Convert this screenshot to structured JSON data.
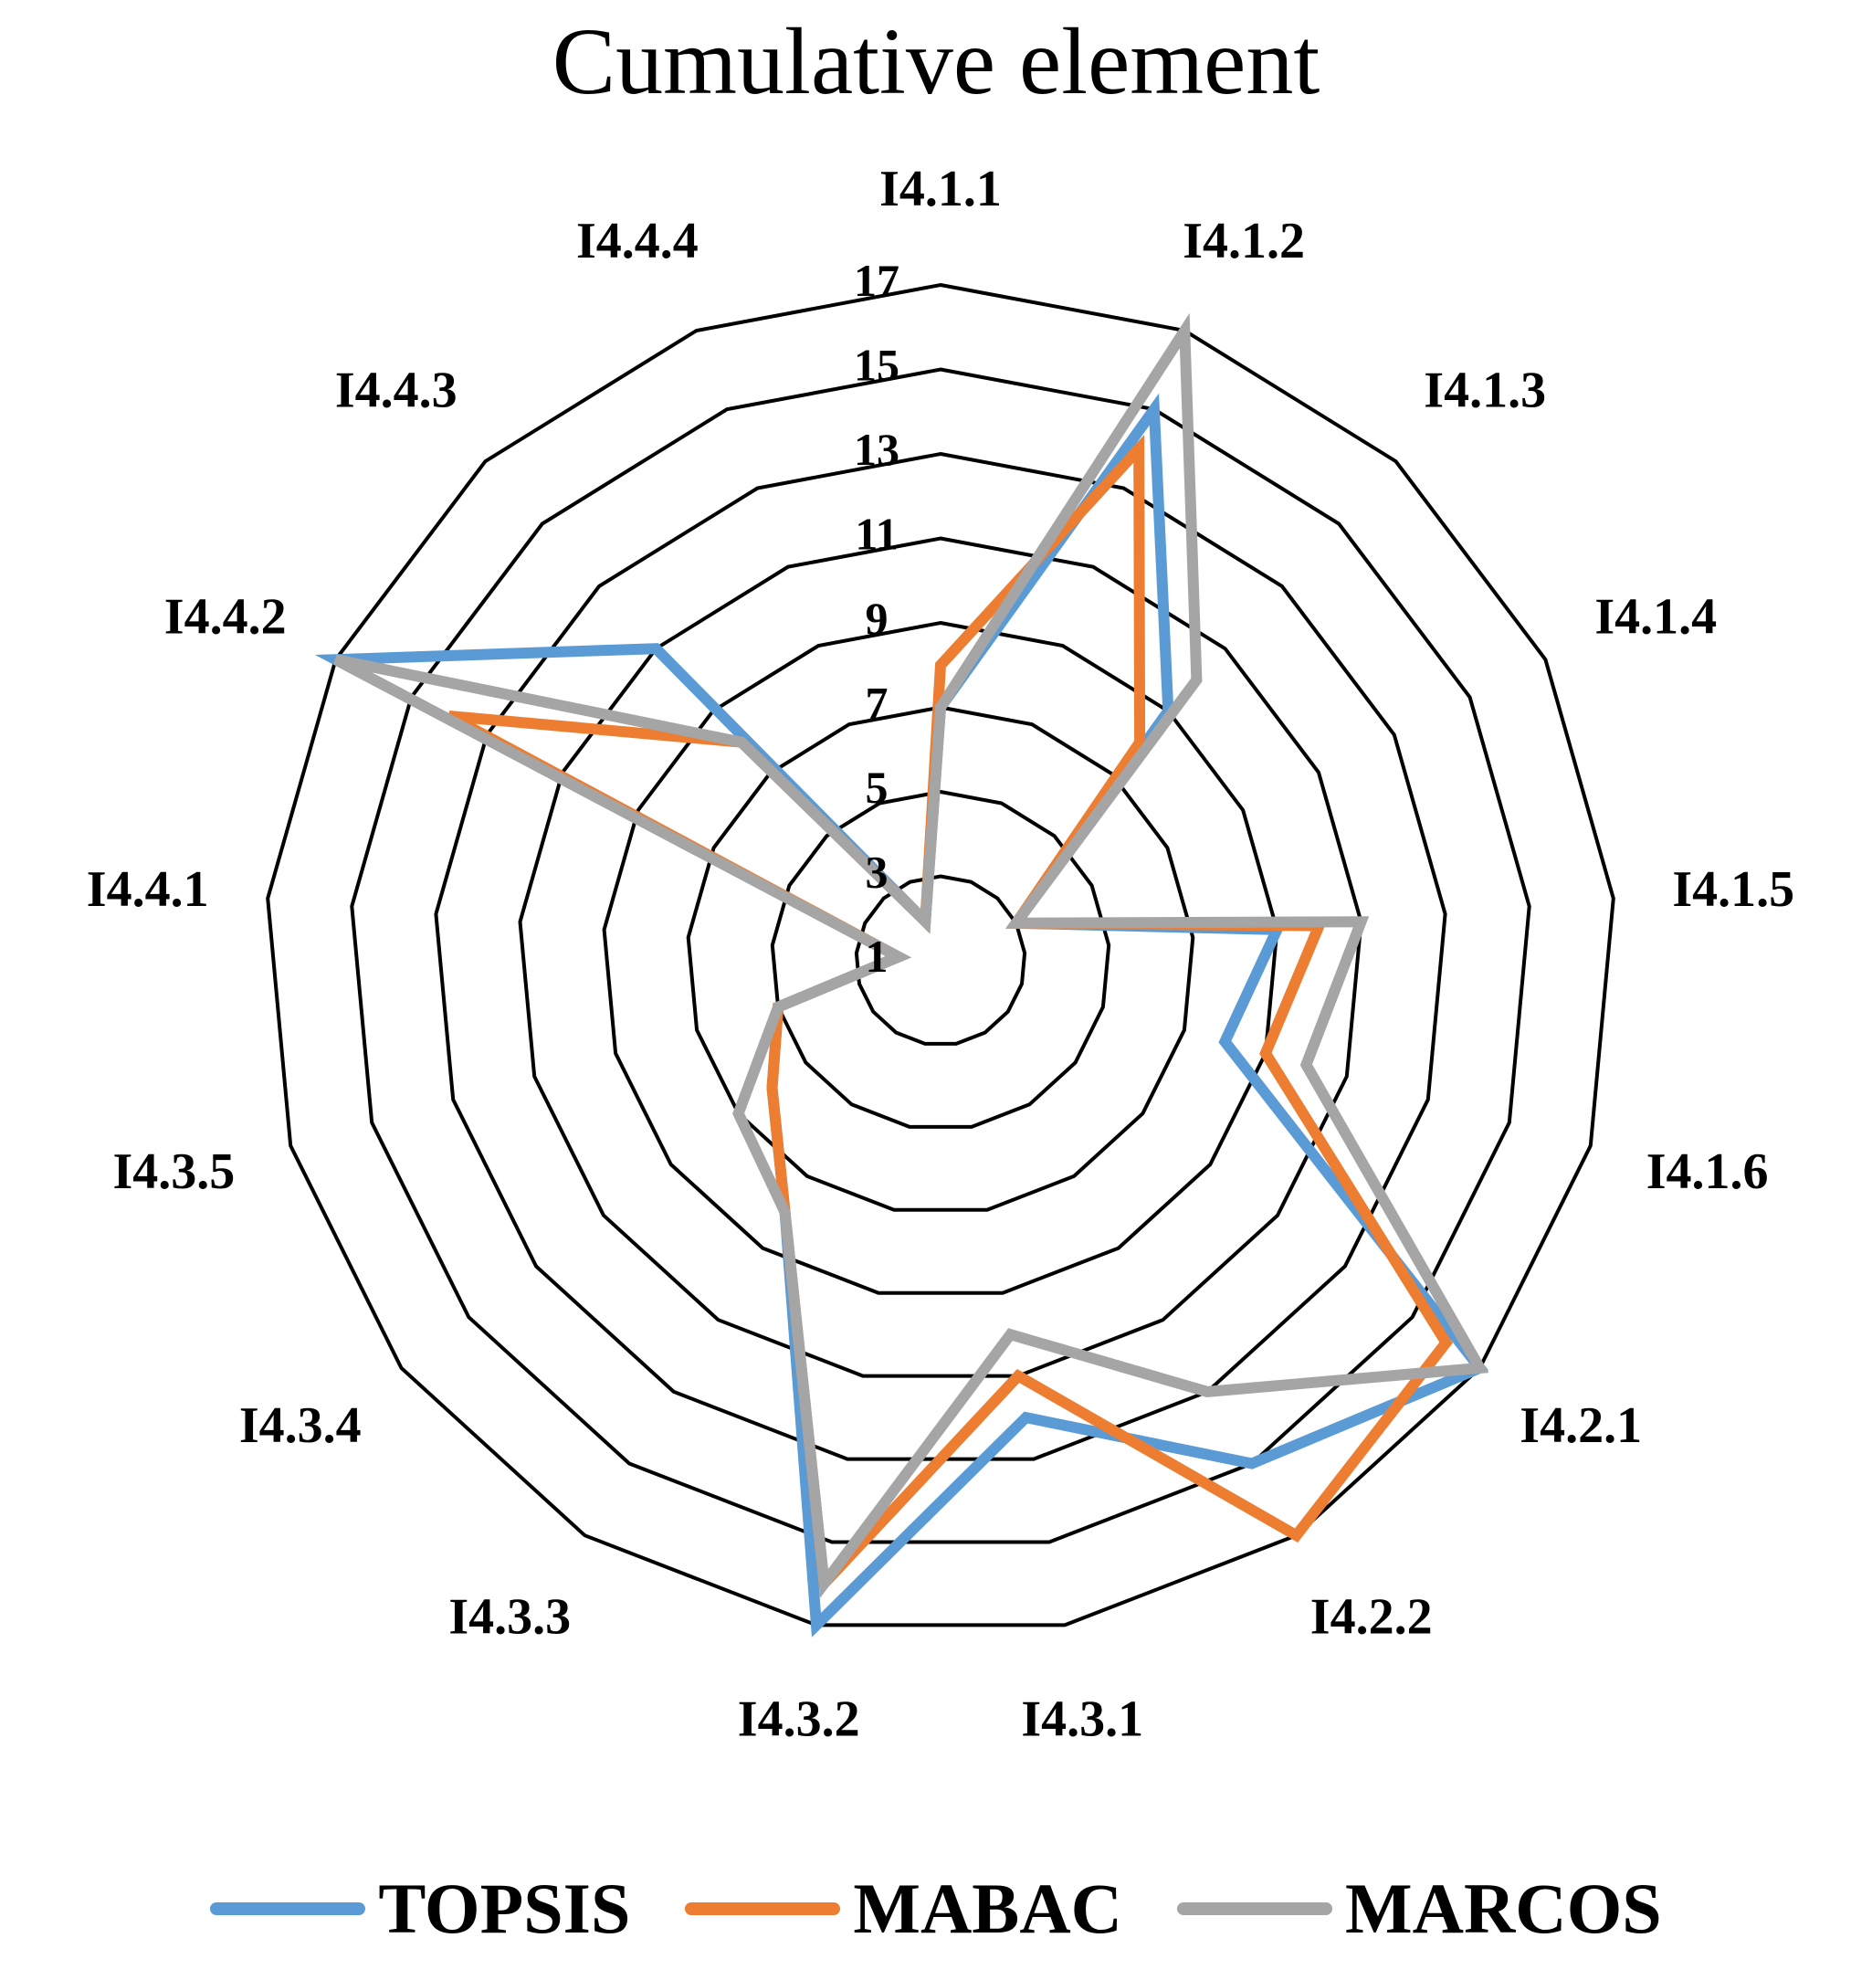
{
  "chart_data": {
    "type": "radar",
    "title": "Cumulative element",
    "categories": [
      "I4.1.1",
      "I4.1.2",
      "I4.1.3",
      "I4.1.4",
      "I4.1.5",
      "I4.1.6",
      "I4.2.1",
      "I4.2.2",
      "I4.3.1",
      "I4.3.2",
      "I4.3.3",
      "I4.3.4",
      "I4.3.5",
      "I4.4.1",
      "I4.4.2",
      "I4.4.3",
      "I4.4.4"
    ],
    "radial_ticks": [
      1,
      3,
      5,
      7,
      9,
      11,
      13,
      15,
      17
    ],
    "rlim": [
      1,
      17
    ],
    "grid": true,
    "legend_position": "bottom",
    "series": [
      {
        "name": "TOPSIS",
        "color": "#5B9BD5",
        "values": [
          7,
          15,
          9,
          3,
          9,
          8,
          17,
          15,
          12,
          17,
          8,
          6,
          5,
          2,
          17,
          11,
          2
        ]
      },
      {
        "name": "MABAC",
        "color": "#ED7D31",
        "values": [
          8,
          14,
          8,
          3,
          10,
          9,
          16,
          17,
          11,
          16,
          8,
          6,
          5,
          2,
          14,
          8,
          2
        ]
      },
      {
        "name": "MARCOS",
        "color": "#A5A5A5",
        "values": [
          7,
          17,
          10,
          3,
          11,
          10,
          17,
          13,
          10,
          16,
          8,
          7,
          5,
          2,
          17,
          8,
          2
        ]
      }
    ]
  }
}
